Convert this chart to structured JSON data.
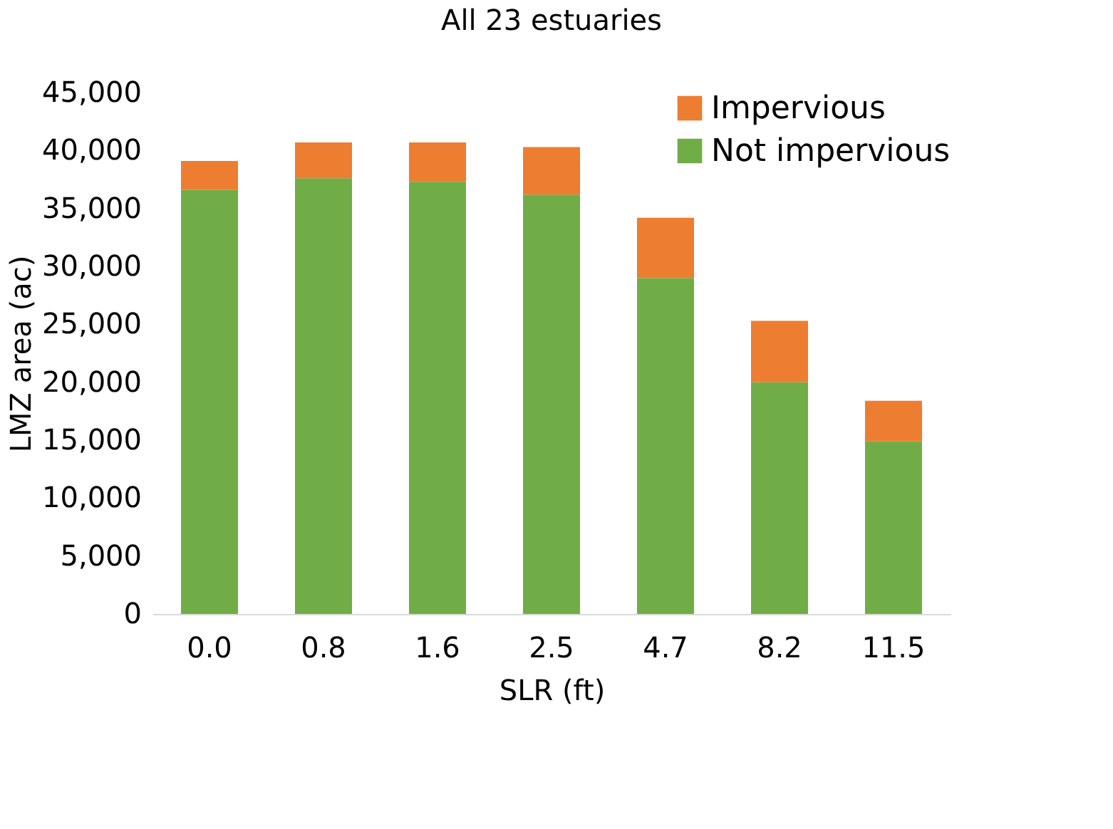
{
  "chart_data": {
    "type": "bar",
    "title": "All 23 estuaries",
    "xlabel": "SLR (ft)",
    "ylabel": "LMZ area (ac)",
    "stacked": true,
    "legend": "top right",
    "grid": false,
    "categories": [
      "0.0",
      "0.8",
      "1.6",
      "2.5",
      "4.7",
      "8.2",
      "11.5"
    ],
    "ylim": [
      0,
      45000
    ],
    "yticks": [
      {
        "value": 0,
        "label": "0"
      },
      {
        "value": 5000,
        "label": "5,000"
      },
      {
        "value": 10000,
        "label": "10,000"
      },
      {
        "value": 15000,
        "label": "15,000"
      },
      {
        "value": 20000,
        "label": "20,000"
      },
      {
        "value": 25000,
        "label": "25,000"
      },
      {
        "value": 30000,
        "label": "30,000"
      },
      {
        "value": 35000,
        "label": "35,000"
      },
      {
        "value": 40000,
        "label": "40,000"
      },
      {
        "value": 45000,
        "label": "45,000"
      }
    ],
    "series": [
      {
        "name": "Not impervious",
        "color": "#70ad47",
        "values": [
          36600,
          37600,
          37300,
          36200,
          29000,
          20000,
          14900
        ]
      },
      {
        "name": "Impervious",
        "color": "#ed7d31",
        "values": [
          2500,
          3100,
          3400,
          4100,
          5200,
          5300,
          3500
        ]
      }
    ]
  }
}
